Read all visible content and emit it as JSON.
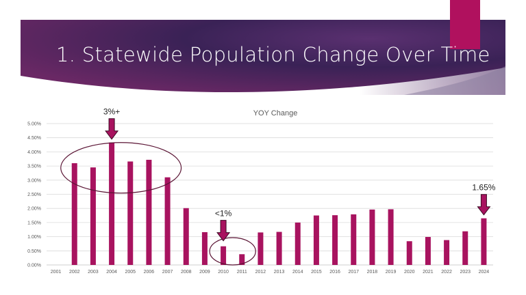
{
  "slide": {
    "title": "1. Statewide Population Change Over Time"
  },
  "colors": {
    "bar": "#a8135f",
    "accent": "#b0115e",
    "banner_dark": "#2a1a45",
    "banner_mid": "#6a2a6a",
    "ellipse": "#5a1434",
    "gridline": "#d9d9d9"
  },
  "chart_data": {
    "type": "bar",
    "title": "YOY Change",
    "xlabel": "",
    "ylabel": "",
    "ylim": [
      0,
      5.0
    ],
    "y_ticks": [
      "0.00%",
      "0.50%",
      "1.00%",
      "1.50%",
      "2.00%",
      "2.50%",
      "3.00%",
      "3.50%",
      "4.00%",
      "4.50%",
      "5.00%"
    ],
    "categories": [
      "2001",
      "2002",
      "2003",
      "2004",
      "2005",
      "2006",
      "2007",
      "2008",
      "2009",
      "2010",
      "2011",
      "2012",
      "2013",
      "2014",
      "2015",
      "2016",
      "2017",
      "2018",
      "2019",
      "2020",
      "2021",
      "2022",
      "2023",
      "2024"
    ],
    "values": [
      null,
      3.6,
      3.45,
      4.33,
      3.66,
      3.72,
      3.1,
      2.01,
      1.16,
      0.66,
      0.38,
      1.15,
      1.17,
      1.5,
      1.75,
      1.76,
      1.79,
      1.96,
      1.97,
      0.84,
      0.99,
      0.88,
      1.19,
      1.65
    ],
    "annotations": [
      {
        "text": "3%+",
        "target": "2004",
        "type": "arrow-down"
      },
      {
        "text": "<1%",
        "target": "2010",
        "type": "arrow-down"
      },
      {
        "text": "1.65%",
        "target": "2024",
        "type": "arrow-down"
      }
    ],
    "highlights": [
      {
        "from": "2002",
        "to": "2007",
        "type": "ellipse"
      },
      {
        "from": "2010",
        "to": "2011",
        "type": "ellipse"
      }
    ]
  }
}
